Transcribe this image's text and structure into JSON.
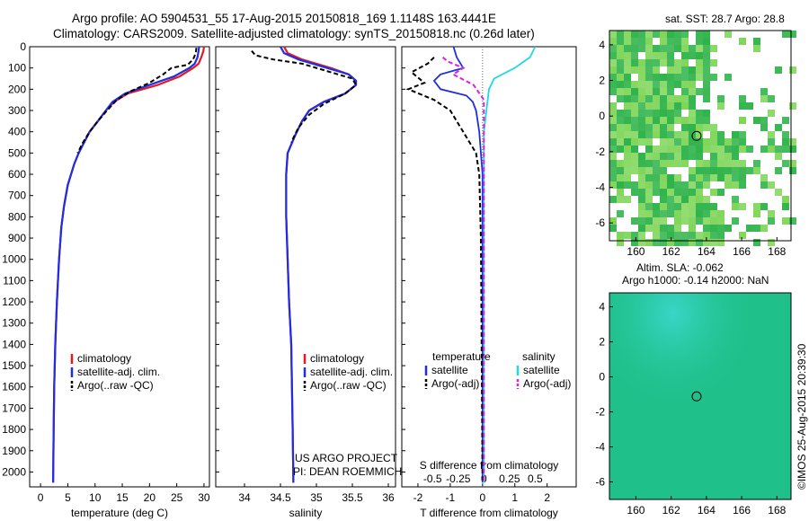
{
  "title": {
    "line1": "Argo profile: AO 5904531_55 17-Aug-2015 20150818_169 1.1148S 163.4441E",
    "line2": "Climatology: CARS2009. Satellite-adjusted climatology: synTS_20150818.nc (0.26d later)"
  },
  "credit": {
    "line1": "US ARGO PROJECT",
    "line2": "PI: DEAN ROEMMICH"
  },
  "watermark": "©IMOS 25-Aug-2015 20:39:30",
  "colors": {
    "climatology": "#e41a1c",
    "satellite": "#1f2ee6",
    "argo": "#000000",
    "salinity_satellite": "#22d6e8",
    "salinity_argo": "#e020e0",
    "map_field_dark": "#2fb34a",
    "map_field_light": "#7fd65a",
    "sla_field": "#1fc08a",
    "sla_field_light": "#39d6c8"
  },
  "chart_data": [
    {
      "type": "line",
      "id": "temperature_profile",
      "xlabel": "temperature (deg C)",
      "xlim": [
        -2,
        31
      ],
      "xticks": [
        0,
        5,
        10,
        15,
        20,
        25,
        30
      ],
      "ylim": [
        0,
        2070
      ],
      "yticks": [
        0,
        100,
        200,
        300,
        400,
        500,
        600,
        700,
        800,
        900,
        1000,
        1100,
        1200,
        1300,
        1400,
        1500,
        1600,
        1700,
        1800,
        1900,
        2000
      ],
      "legend": [
        "climatology",
        "satellite-adj. clim.",
        "Argo(..raw -QC)"
      ],
      "series": [
        {
          "name": "climatology",
          "x": [
            30.0,
            29.9,
            29.5,
            29.0,
            28.0,
            25.5,
            21.5,
            16.0,
            13.5,
            12.0,
            10.5,
            9.0,
            8.0,
            7.0,
            6.2,
            5.0,
            4.3,
            3.8,
            3.4,
            3.0,
            2.7,
            2.5,
            2.4,
            2.3
          ],
          "y": [
            0,
            20,
            50,
            80,
            100,
            140,
            180,
            220,
            260,
            300,
            350,
            400,
            450,
            500,
            550,
            650,
            750,
            850,
            1000,
            1200,
            1400,
            1600,
            1800,
            2050
          ]
        },
        {
          "name": "satellite-adj. clim.",
          "x": [
            29.1,
            29.0,
            28.8,
            28.3,
            27.3,
            24.5,
            20.0,
            15.5,
            13.2,
            12.0,
            10.5,
            9.0,
            8.0,
            7.0,
            6.2,
            5.0,
            4.3,
            3.8,
            3.4,
            3.0,
            2.7,
            2.5,
            2.4,
            2.3
          ],
          "y": [
            0,
            20,
            50,
            80,
            100,
            140,
            180,
            220,
            260,
            300,
            350,
            400,
            450,
            500,
            550,
            650,
            750,
            850,
            1000,
            1200,
            1400,
            1600,
            1800,
            2050
          ]
        },
        {
          "name": "Argo(..raw -QC)",
          "x": [
            28.6,
            28.5,
            28.0,
            27.0,
            24.0,
            22.5,
            20.0,
            16.5,
            14.0,
            12.2,
            10.5,
            9.0,
            7.8,
            6.8
          ],
          "y": [
            5,
            30,
            60,
            85,
            100,
            130,
            170,
            210,
            250,
            300,
            350,
            400,
            450,
            500
          ]
        }
      ]
    },
    {
      "type": "line",
      "id": "salinity_profile",
      "xlabel": "salinity",
      "xlim": [
        33.6,
        36.1
      ],
      "xticks": [
        34,
        34.5,
        35,
        35.5,
        36
      ],
      "ylim": [
        0,
        2070
      ],
      "legend": [
        "climatology",
        "satellite-adj. clim.",
        "Argo(..raw -QC)"
      ],
      "series": [
        {
          "name": "climatology",
          "x": [
            34.55,
            34.6,
            34.8,
            35.2,
            35.45,
            35.55,
            35.55,
            35.4,
            35.1,
            34.9,
            34.8,
            34.7,
            34.6,
            34.58,
            34.58,
            34.6,
            34.62,
            34.65,
            34.66,
            34.67,
            34.68
          ],
          "y": [
            0,
            30,
            60,
            100,
            130,
            160,
            180,
            220,
            260,
            300,
            350,
            420,
            500,
            600,
            800,
            1000,
            1200,
            1400,
            1600,
            1800,
            2050
          ]
        },
        {
          "name": "satellite-adj. clim.",
          "x": [
            34.5,
            34.55,
            34.75,
            35.15,
            35.45,
            35.55,
            35.55,
            35.4,
            35.1,
            34.9,
            34.8,
            34.7,
            34.6,
            34.58,
            34.58,
            34.6,
            34.62,
            34.65,
            34.66,
            34.67,
            34.68
          ],
          "y": [
            0,
            30,
            60,
            100,
            130,
            160,
            180,
            220,
            260,
            300,
            350,
            420,
            500,
            600,
            800,
            1000,
            1200,
            1400,
            1600,
            1800,
            2050
          ]
        },
        {
          "name": "Argo(..raw -QC)",
          "x": [
            34.1,
            34.15,
            34.4,
            34.8,
            35.2,
            35.5,
            35.55,
            35.4,
            35.1,
            34.9,
            34.75,
            34.65
          ],
          "y": [
            20,
            40,
            60,
            80,
            120,
            150,
            180,
            220,
            270,
            320,
            380,
            450
          ]
        }
      ]
    },
    {
      "type": "line",
      "id": "difference_profile",
      "xlabel": "T difference from climatology",
      "xlabel_top": "S difference from climatology",
      "xlim": [
        -2.5,
        2.9
      ],
      "xticks": [
        -2,
        -1,
        0,
        1,
        2
      ],
      "xlim_salinity": [
        -0.8,
        0.9
      ],
      "xticks_salinity": [
        -0.5,
        -0.25,
        0,
        0.25,
        0.5
      ],
      "ylim": [
        0,
        2070
      ],
      "legend_temperature": [
        "satellite",
        "Argo(-adj)"
      ],
      "legend_salinity": [
        "satellite",
        "Argo(-adj)"
      ],
      "legend_headers": [
        "temperature",
        "salinity"
      ],
      "series": [
        {
          "name": "temperature satellite",
          "x": [
            -0.9,
            -0.8,
            -0.6,
            -1.3,
            -1.5,
            -1.3,
            -0.5,
            -0.3,
            -0.2,
            -0.1,
            0,
            0,
            0
          ],
          "y": [
            0,
            50,
            100,
            130,
            160,
            200,
            230,
            260,
            300,
            400,
            600,
            1000,
            2050
          ]
        },
        {
          "name": "temperature Argo(-adj)",
          "x": [
            -1.5,
            -1.7,
            -2.2,
            -1.8,
            -2.3,
            -1.5,
            -1.0,
            -0.8,
            -0.6,
            -0.4,
            -0.2,
            -0.1,
            -0.05,
            0
          ],
          "y": [
            50,
            80,
            120,
            170,
            200,
            250,
            300,
            350,
            400,
            450,
            500,
            600,
            900,
            2050
          ]
        },
        {
          "name": "salinity satellite",
          "x": [
            0.5,
            0.45,
            0.3,
            0.1,
            0.05,
            0,
            0,
            0,
            0
          ],
          "y": [
            0,
            50,
            100,
            150,
            200,
            400,
            800,
            1500,
            2050
          ]
        },
        {
          "name": "salinity Argo(-adj)",
          "x": [
            -0.4,
            -0.35,
            -0.2,
            -0.3,
            -0.1,
            0,
            0
          ],
          "y": [
            50,
            70,
            100,
            130,
            180,
            250,
            2050
          ]
        }
      ]
    },
    {
      "type": "heatmap",
      "id": "sst_map",
      "title": "sat. SST: 28.7 Argo: 28.8",
      "xlim": [
        158.5,
        168.8
      ],
      "xticks": [
        160,
        162,
        164,
        166,
        168
      ],
      "ylim": [
        -7.0,
        4.8
      ],
      "yticks": [
        -6,
        -4,
        -2,
        0,
        2,
        4
      ],
      "marker": {
        "lon": 163.4441,
        "lat": -1.1148
      }
    },
    {
      "type": "heatmap",
      "id": "sla_map",
      "title_line1": "Altim. SLA: -0.062",
      "title_line2": "Argo h1000: -0.14 h2000: NaN",
      "xlim": [
        158.5,
        168.8
      ],
      "xticks": [
        160,
        162,
        164,
        166,
        168
      ],
      "ylim": [
        -7.0,
        4.8
      ],
      "yticks": [
        -6,
        -4,
        -2,
        0,
        2,
        4
      ],
      "marker": {
        "lon": 163.4441,
        "lat": -1.1148
      }
    }
  ]
}
